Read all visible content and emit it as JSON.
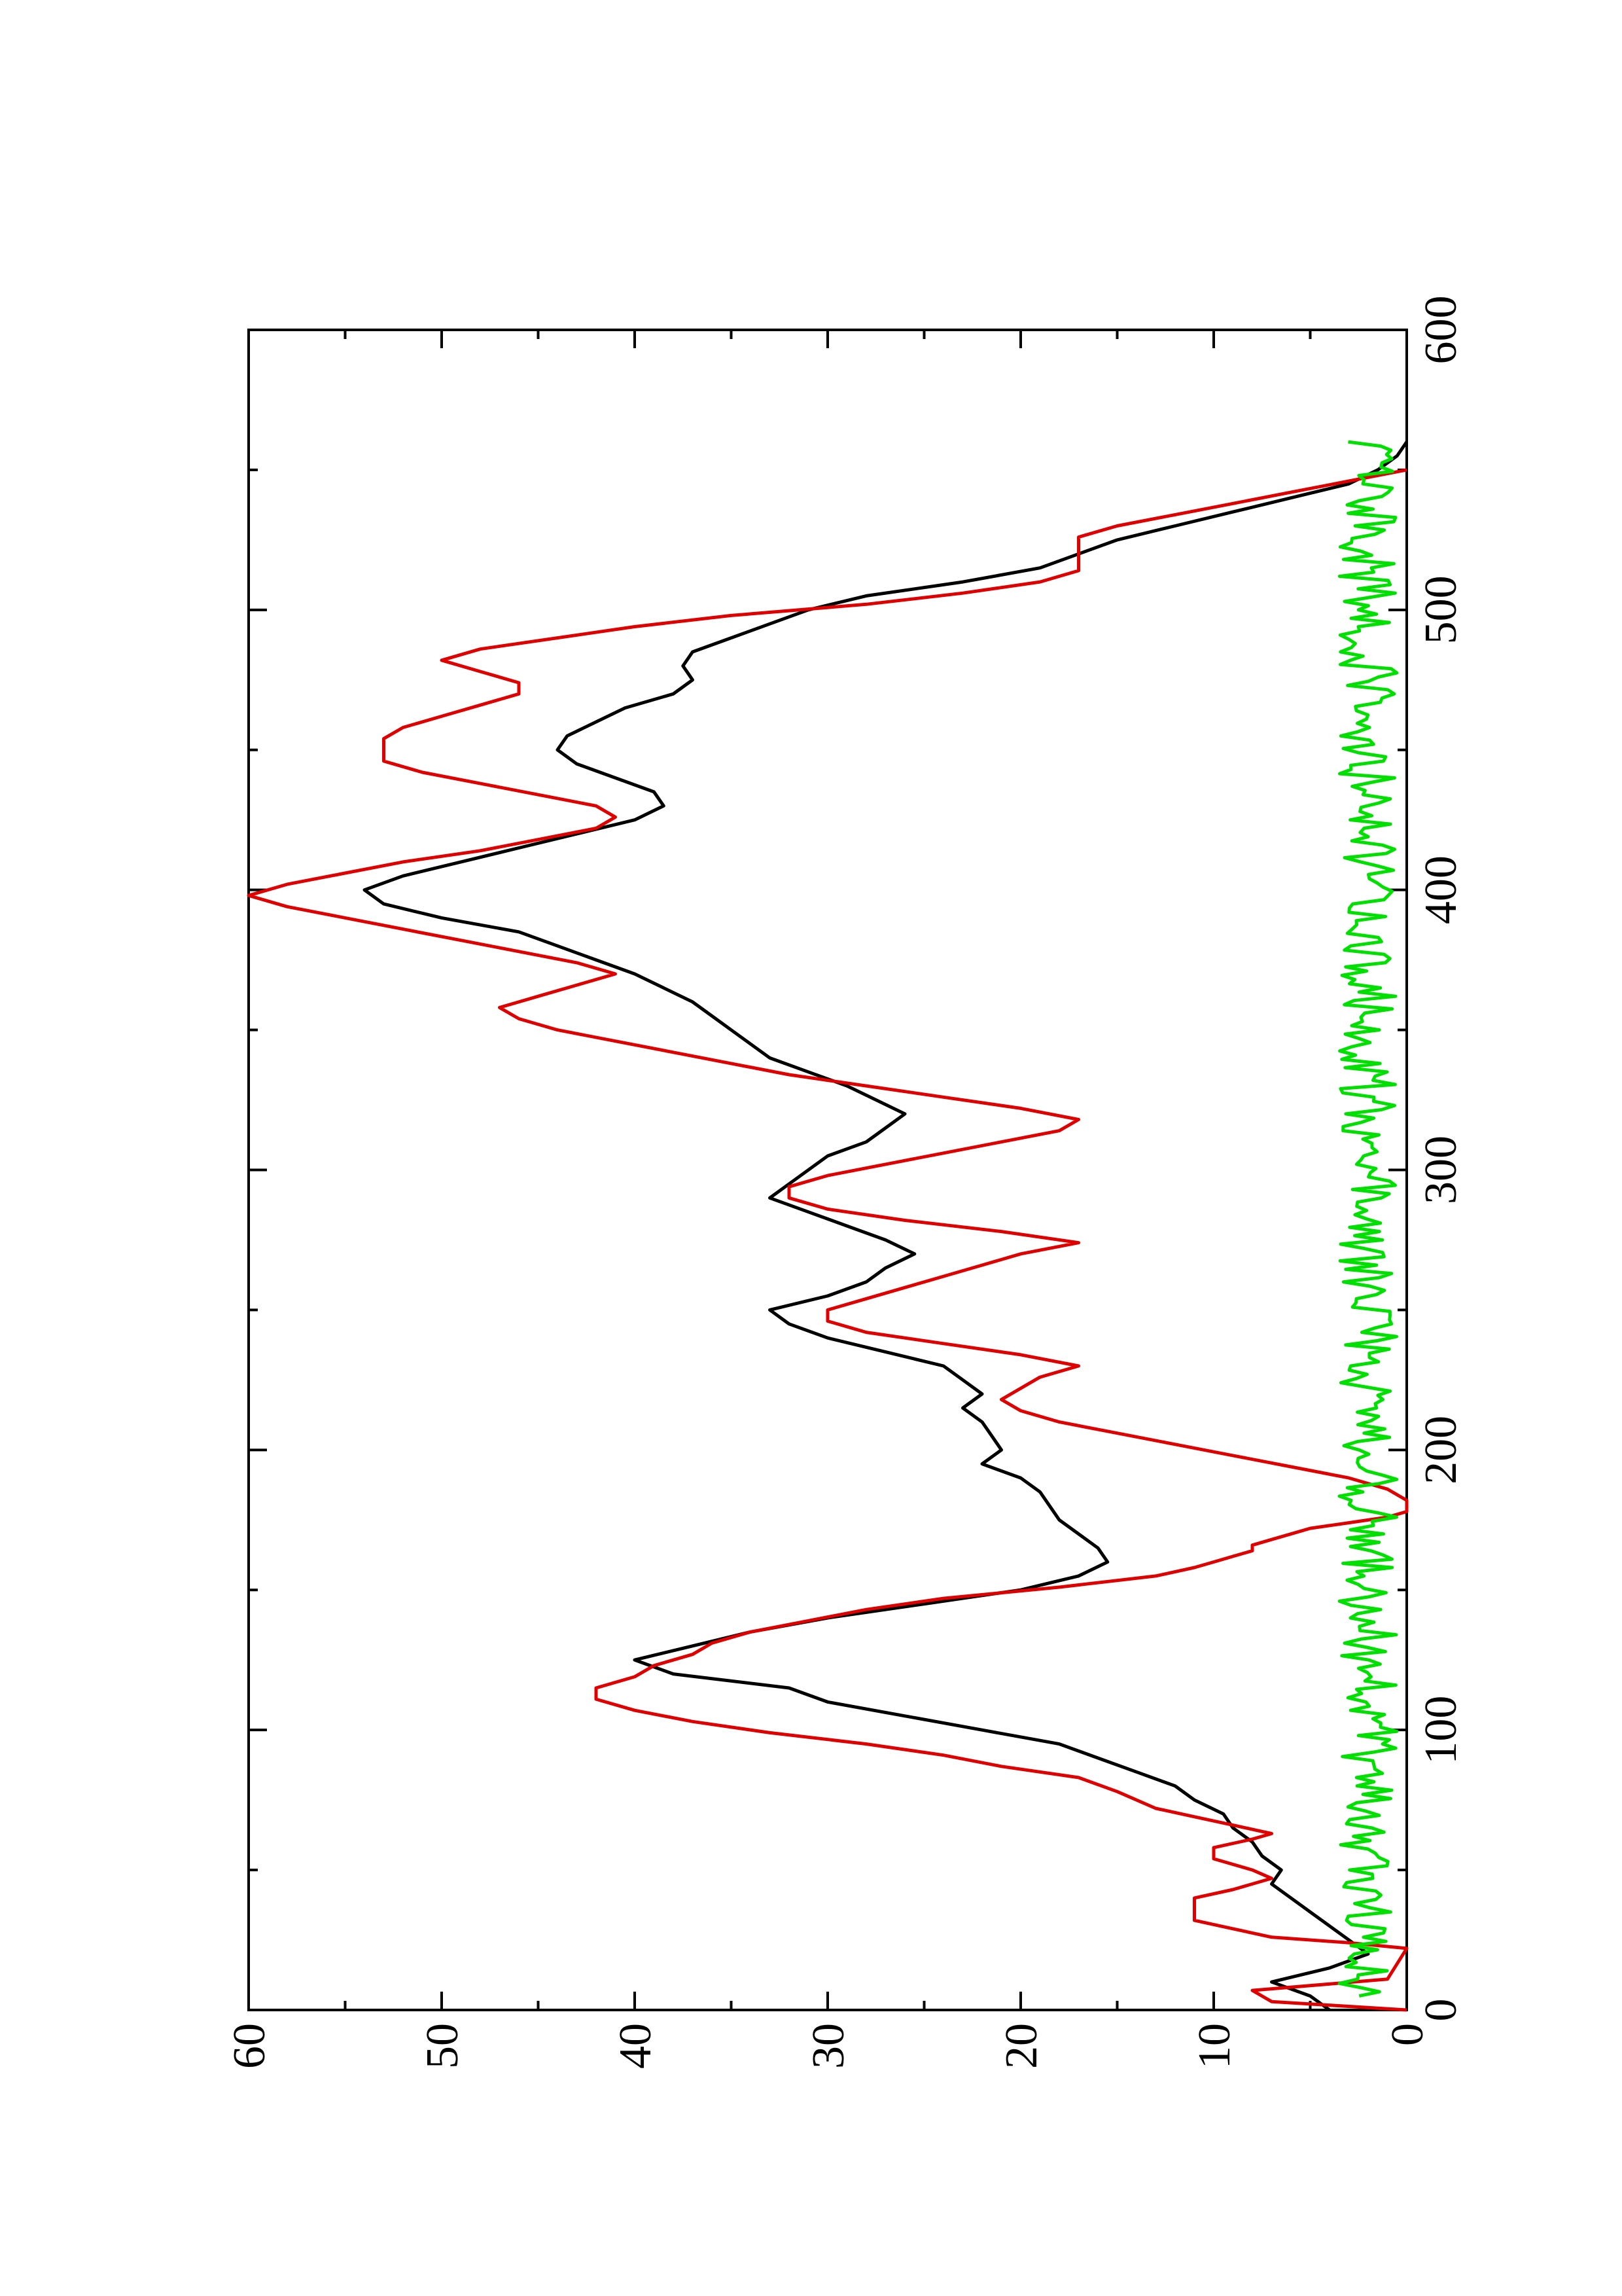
{
  "chart_data": {
    "type": "line",
    "title": "",
    "xlabel": "",
    "ylabel": "",
    "orientation": "rotated-90-ccw",
    "xlim": [
      0,
      600
    ],
    "ylim": [
      0,
      60
    ],
    "x_ticks": [
      "0",
      "100",
      "200",
      "300",
      "400",
      "500",
      "600"
    ],
    "y_ticks": [
      "0",
      "10",
      "20",
      "30",
      "40",
      "50",
      "60"
    ],
    "grid": false,
    "legend": "none",
    "series": [
      {
        "color": "#000000",
        "style": "smooth",
        "points": [
          [
            0,
            4
          ],
          [
            5,
            5
          ],
          [
            10,
            7
          ],
          [
            15,
            4
          ],
          [
            20,
            2
          ],
          [
            25,
            3
          ],
          [
            30,
            4
          ],
          [
            35,
            5
          ],
          [
            40,
            6
          ],
          [
            45,
            7
          ],
          [
            50,
            6.5
          ],
          [
            55,
            7.5
          ],
          [
            60,
            8
          ],
          [
            65,
            9
          ],
          [
            70,
            9.5
          ],
          [
            75,
            11
          ],
          [
            80,
            12
          ],
          [
            85,
            14
          ],
          [
            90,
            16
          ],
          [
            95,
            18
          ],
          [
            100,
            22
          ],
          [
            105,
            26
          ],
          [
            110,
            30
          ],
          [
            115,
            32
          ],
          [
            120,
            38
          ],
          [
            125,
            40
          ],
          [
            130,
            37
          ],
          [
            135,
            34
          ],
          [
            140,
            30
          ],
          [
            145,
            25
          ],
          [
            150,
            20
          ],
          [
            155,
            17
          ],
          [
            160,
            15.5
          ],
          [
            165,
            16
          ],
          [
            170,
            17
          ],
          [
            175,
            18
          ],
          [
            180,
            18.5
          ],
          [
            185,
            19
          ],
          [
            190,
            20
          ],
          [
            195,
            22
          ],
          [
            200,
            21
          ],
          [
            205,
            21.5
          ],
          [
            210,
            22
          ],
          [
            215,
            23
          ],
          [
            220,
            22
          ],
          [
            225,
            23
          ],
          [
            230,
            24
          ],
          [
            235,
            27
          ],
          [
            240,
            30
          ],
          [
            245,
            32
          ],
          [
            250,
            33
          ],
          [
            255,
            30
          ],
          [
            260,
            28
          ],
          [
            265,
            27
          ],
          [
            270,
            25.5
          ],
          [
            275,
            27
          ],
          [
            280,
            29
          ],
          [
            285,
            31
          ],
          [
            290,
            33
          ],
          [
            295,
            32
          ],
          [
            300,
            31
          ],
          [
            305,
            30
          ],
          [
            310,
            28
          ],
          [
            315,
            27
          ],
          [
            320,
            26
          ],
          [
            325,
            27.5
          ],
          [
            330,
            29
          ],
          [
            335,
            31
          ],
          [
            340,
            33
          ],
          [
            345,
            34
          ],
          [
            350,
            35
          ],
          [
            355,
            36
          ],
          [
            360,
            37
          ],
          [
            365,
            38.5
          ],
          [
            370,
            40
          ],
          [
            375,
            42
          ],
          [
            380,
            44
          ],
          [
            385,
            46
          ],
          [
            390,
            50
          ],
          [
            395,
            53
          ],
          [
            400,
            54
          ],
          [
            405,
            52
          ],
          [
            410,
            49
          ],
          [
            415,
            46
          ],
          [
            420,
            43
          ],
          [
            425,
            40
          ],
          [
            430,
            38.5
          ],
          [
            435,
            39
          ],
          [
            440,
            41
          ],
          [
            445,
            43
          ],
          [
            450,
            44
          ],
          [
            455,
            43.5
          ],
          [
            460,
            42
          ],
          [
            465,
            40.5
          ],
          [
            470,
            38
          ],
          [
            475,
            37
          ],
          [
            480,
            37.5
          ],
          [
            485,
            37
          ],
          [
            490,
            35
          ],
          [
            495,
            33
          ],
          [
            500,
            31
          ],
          [
            505,
            28
          ],
          [
            510,
            23
          ],
          [
            515,
            19
          ],
          [
            520,
            17
          ],
          [
            525,
            15
          ],
          [
            530,
            12
          ],
          [
            535,
            9
          ],
          [
            540,
            6
          ],
          [
            545,
            3
          ],
          [
            550,
            1.5
          ],
          [
            555,
            0.5
          ],
          [
            560,
            0
          ]
        ]
      },
      {
        "color": "#e00000",
        "style": "steps",
        "points": [
          [
            0,
            0
          ],
          [
            3,
            7
          ],
          [
            7,
            8
          ],
          [
            11,
            1
          ],
          [
            22,
            0
          ],
          [
            24,
            3
          ],
          [
            26,
            7
          ],
          [
            29,
            9
          ],
          [
            32,
            11
          ],
          [
            40,
            11
          ],
          [
            43,
            9
          ],
          [
            47,
            7
          ],
          [
            50,
            8
          ],
          [
            54,
            10
          ],
          [
            58,
            10
          ],
          [
            61,
            8
          ],
          [
            63,
            7
          ],
          [
            66,
            9
          ],
          [
            69,
            11
          ],
          [
            72,
            13
          ],
          [
            78,
            15
          ],
          [
            83,
            17
          ],
          [
            87,
            21
          ],
          [
            91,
            24
          ],
          [
            95,
            28
          ],
          [
            99,
            33
          ],
          [
            103,
            37
          ],
          [
            107,
            40
          ],
          [
            111,
            42
          ],
          [
            115,
            42
          ],
          [
            119,
            40
          ],
          [
            123,
            39
          ],
          [
            127,
            37
          ],
          [
            131,
            36
          ],
          [
            135,
            34
          ],
          [
            139,
            31
          ],
          [
            143,
            28
          ],
          [
            147,
            24
          ],
          [
            151,
            18
          ],
          [
            155,
            13
          ],
          [
            158,
            11
          ],
          [
            160,
            10
          ],
          [
            162,
            9
          ],
          [
            164,
            8
          ],
          [
            166,
            8
          ],
          [
            168,
            7
          ],
          [
            170,
            6
          ],
          [
            172,
            5
          ],
          [
            174,
            3
          ],
          [
            176,
            1
          ],
          [
            178,
            0
          ],
          [
            182,
            0
          ],
          [
            186,
            1
          ],
          [
            190,
            3
          ],
          [
            194,
            6
          ],
          [
            198,
            9
          ],
          [
            202,
            12
          ],
          [
            206,
            15
          ],
          [
            210,
            18
          ],
          [
            214,
            20
          ],
          [
            218,
            21
          ],
          [
            222,
            20
          ],
          [
            226,
            19
          ],
          [
            230,
            17
          ],
          [
            234,
            20
          ],
          [
            238,
            24
          ],
          [
            242,
            28
          ],
          [
            246,
            30
          ],
          [
            250,
            30
          ],
          [
            254,
            28
          ],
          [
            258,
            26
          ],
          [
            262,
            24
          ],
          [
            266,
            22
          ],
          [
            270,
            20
          ],
          [
            274,
            17
          ],
          [
            278,
            21
          ],
          [
            282,
            26
          ],
          [
            286,
            30
          ],
          [
            290,
            32
          ],
          [
            294,
            32
          ],
          [
            298,
            30
          ],
          [
            302,
            27
          ],
          [
            306,
            24
          ],
          [
            310,
            21
          ],
          [
            314,
            18
          ],
          [
            318,
            17
          ],
          [
            322,
            20
          ],
          [
            326,
            24
          ],
          [
            330,
            28
          ],
          [
            334,
            32
          ],
          [
            338,
            35
          ],
          [
            342,
            38
          ],
          [
            346,
            41
          ],
          [
            350,
            44
          ],
          [
            354,
            46
          ],
          [
            358,
            47
          ],
          [
            362,
            45
          ],
          [
            366,
            43
          ],
          [
            370,
            41
          ],
          [
            374,
            43
          ],
          [
            378,
            46
          ],
          [
            382,
            49
          ],
          [
            386,
            52
          ],
          [
            390,
            55
          ],
          [
            394,
            58
          ],
          [
            398,
            60
          ],
          [
            402,
            58
          ],
          [
            406,
            55
          ],
          [
            410,
            52
          ],
          [
            414,
            48
          ],
          [
            418,
            45
          ],
          [
            422,
            42
          ],
          [
            426,
            41
          ],
          [
            430,
            42
          ],
          [
            434,
            45
          ],
          [
            438,
            48
          ],
          [
            442,
            51
          ],
          [
            446,
            53
          ],
          [
            450,
            53
          ],
          [
            454,
            53
          ],
          [
            458,
            52
          ],
          [
            462,
            50
          ],
          [
            466,
            48
          ],
          [
            470,
            46
          ],
          [
            474,
            46
          ],
          [
            478,
            48
          ],
          [
            482,
            50
          ],
          [
            486,
            48
          ],
          [
            490,
            44
          ],
          [
            494,
            40
          ],
          [
            498,
            35
          ],
          [
            502,
            28
          ],
          [
            506,
            23
          ],
          [
            510,
            19
          ],
          [
            514,
            17
          ],
          [
            518,
            17
          ],
          [
            522,
            17
          ],
          [
            526,
            17
          ],
          [
            530,
            15
          ],
          [
            534,
            12
          ],
          [
            538,
            9
          ],
          [
            542,
            6
          ],
          [
            546,
            3
          ],
          [
            550,
            0
          ]
        ]
      },
      {
        "color": "#00e000",
        "style": "noisy",
        "base": 2,
        "amplitude": 1.5,
        "x_range": [
          5,
          560
        ],
        "step": 1.5
      }
    ]
  }
}
